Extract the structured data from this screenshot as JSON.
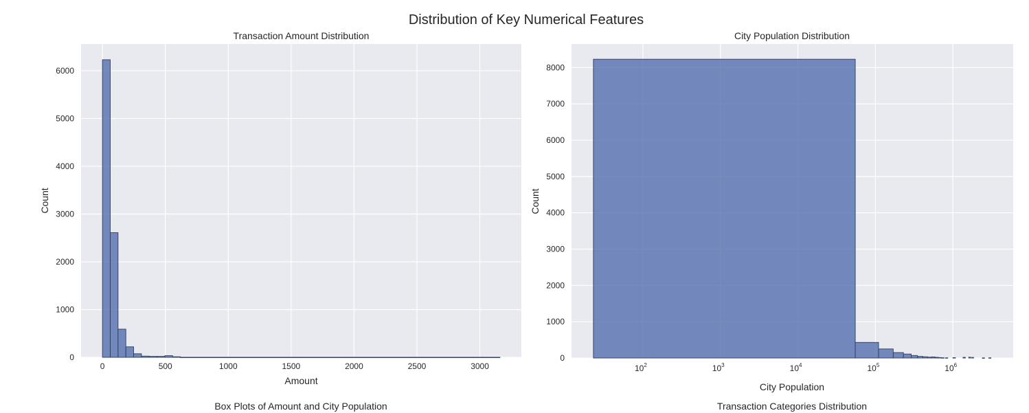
{
  "figure": {
    "title": "Distribution of Key Numerical Features",
    "lower_titles": [
      "Box Plots of Amount and City Population",
      "Transaction Categories Distribution"
    ]
  },
  "colors": {
    "bar_fill": "#5873b1",
    "bar_stroke": "#2f3d5c",
    "axes_bg": "#e9e9f0",
    "grid": "#ffffff",
    "text": "#262626"
  },
  "chart_data": [
    {
      "type": "bar",
      "title": "Transaction Amount Distribution",
      "xlabel": "Amount",
      "ylabel": "Count",
      "xscale": "linear",
      "xlim": [
        -170,
        3330
      ],
      "ylim": [
        0,
        6560
      ],
      "xticks": [
        0,
        500,
        1000,
        1500,
        2000,
        2500,
        3000
      ],
      "xtick_labels": [
        "0",
        "500",
        "1000",
        "1500",
        "2000",
        "2500",
        "3000"
      ],
      "yticks": [
        0,
        1000,
        2000,
        3000,
        4000,
        5000,
        6000
      ],
      "ytick_labels": [
        "0",
        "1000",
        "2000",
        "3000",
        "4000",
        "5000",
        "6000"
      ],
      "grid": true,
      "bins": [
        {
          "x0": 0,
          "x1": 62,
          "value": 6230
        },
        {
          "x0": 62,
          "x1": 124,
          "value": 2610
        },
        {
          "x0": 124,
          "x1": 186,
          "value": 590
        },
        {
          "x0": 186,
          "x1": 248,
          "value": 220
        },
        {
          "x0": 248,
          "x1": 310,
          "value": 75
        },
        {
          "x0": 310,
          "x1": 372,
          "value": 25
        },
        {
          "x0": 372,
          "x1": 434,
          "value": 20
        },
        {
          "x0": 434,
          "x1": 496,
          "value": 20
        },
        {
          "x0": 496,
          "x1": 558,
          "value": 35
        },
        {
          "x0": 558,
          "x1": 620,
          "value": 12
        },
        {
          "x0": 620,
          "x1": 3160,
          "value": 2
        }
      ]
    },
    {
      "type": "bar",
      "title": "City Population Distribution",
      "xlabel": "City Population",
      "ylabel": "Count",
      "xscale": "log",
      "xlim": [
        12,
        6000000
      ],
      "ylim": [
        0,
        8650
      ],
      "xticks": [
        100,
        1000,
        10000,
        100000,
        1000000
      ],
      "xtick_labels": [
        "10",
        "10",
        "10",
        "10",
        "10"
      ],
      "xtick_exponents": [
        "2",
        "3",
        "4",
        "5",
        "6"
      ],
      "yticks": [
        0,
        1000,
        2000,
        3000,
        4000,
        5000,
        6000,
        7000,
        8000
      ],
      "ytick_labels": [
        "0",
        "1000",
        "2000",
        "3000",
        "4000",
        "5000",
        "6000",
        "7000",
        "8000"
      ],
      "grid": true,
      "bins": [
        {
          "x0": 23,
          "x1": 55000,
          "value": 8230
        },
        {
          "x0": 55000,
          "x1": 110000,
          "value": 430
        },
        {
          "x0": 110000,
          "x1": 170000,
          "value": 250
        },
        {
          "x0": 170000,
          "x1": 230000,
          "value": 150
        },
        {
          "x0": 230000,
          "x1": 290000,
          "value": 110
        },
        {
          "x0": 290000,
          "x1": 350000,
          "value": 70
        },
        {
          "x0": 350000,
          "x1": 410000,
          "value": 45
        },
        {
          "x0": 410000,
          "x1": 470000,
          "value": 35
        },
        {
          "x0": 470000,
          "x1": 530000,
          "value": 25
        },
        {
          "x0": 530000,
          "x1": 590000,
          "value": 30
        },
        {
          "x0": 590000,
          "x1": 650000,
          "value": 20
        },
        {
          "x0": 650000,
          "x1": 710000,
          "value": 12
        },
        {
          "x0": 710000,
          "x1": 770000,
          "value": 8
        },
        {
          "x0": 800000,
          "x1": 860000,
          "value": 6
        },
        {
          "x0": 1000000,
          "x1": 1080000,
          "value": 10
        },
        {
          "x0": 1350000,
          "x1": 1450000,
          "value": 18
        },
        {
          "x0": 1600000,
          "x1": 1700000,
          "value": 22
        },
        {
          "x0": 1750000,
          "x1": 1850000,
          "value": 16
        },
        {
          "x0": 2400000,
          "x1": 2560000,
          "value": 4
        },
        {
          "x0": 2900000,
          "x1": 3100000,
          "value": 6
        }
      ]
    }
  ]
}
